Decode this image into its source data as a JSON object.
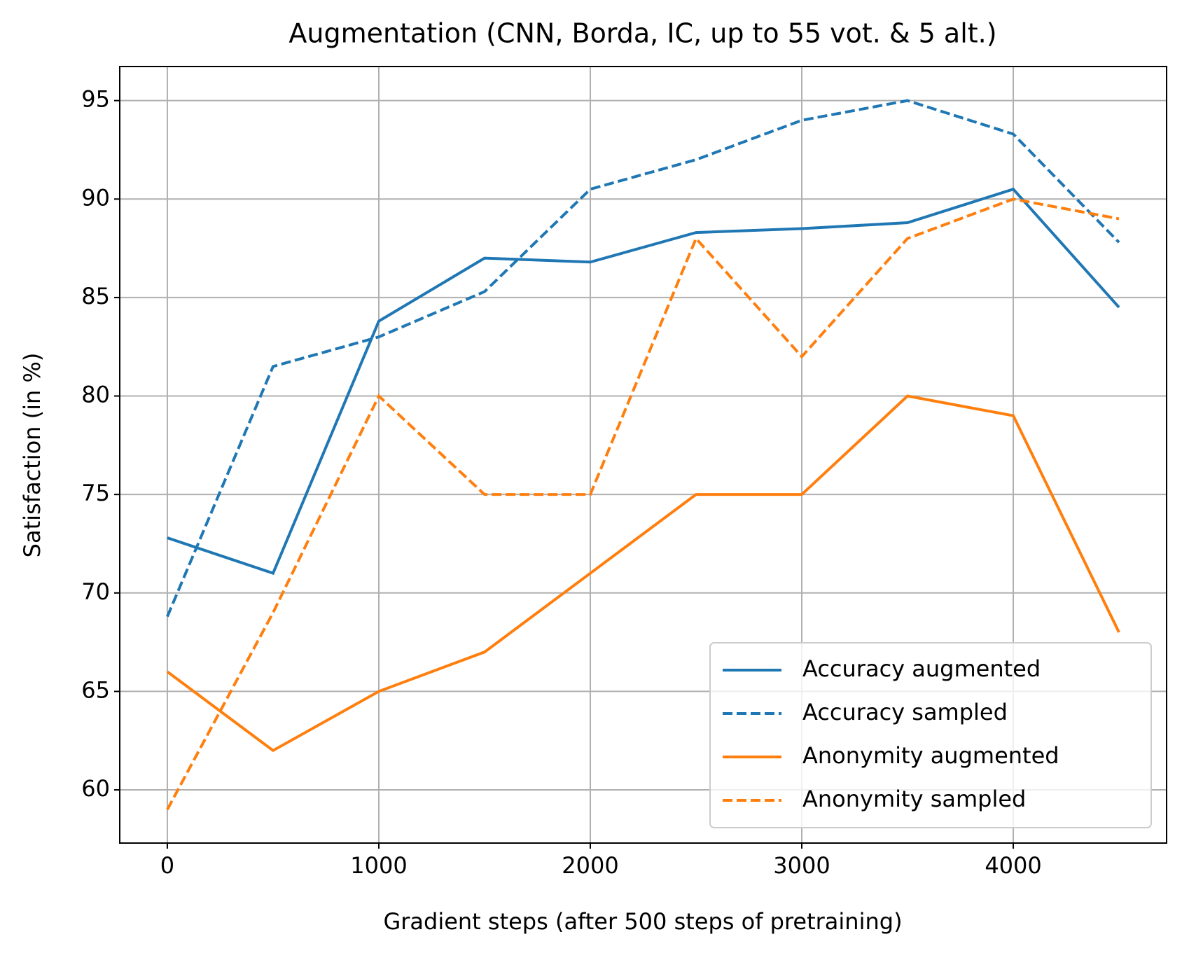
{
  "chart_data": {
    "type": "line",
    "title": "Augmentation (CNN, Borda, IC, up to 55 vot. & 5 alt.)",
    "x_label": "Gradient steps (after 500 steps of pretraining)",
    "y_label": "Satisfaction (in %)",
    "x": [
      0,
      500,
      1000,
      1500,
      2000,
      2500,
      3000,
      3500,
      4000,
      4500
    ],
    "series": [
      {
        "name": "Accuracy augmented",
        "color": "#1f77b4",
        "linestyle": "solid",
        "values": [
          72.8,
          71.0,
          83.8,
          87.0,
          86.8,
          88.3,
          88.5,
          88.8,
          90.5,
          84.5
        ]
      },
      {
        "name": "Accuracy sampled",
        "color": "#1f77b4",
        "linestyle": "dashed",
        "values": [
          68.8,
          81.5,
          83.0,
          85.3,
          90.5,
          92.0,
          94.0,
          95.0,
          93.3,
          87.8
        ]
      },
      {
        "name": "Anonymity augmented",
        "color": "#ff7f0e",
        "linestyle": "solid",
        "values": [
          66,
          62,
          65,
          67,
          71,
          75,
          75,
          80,
          79,
          68
        ]
      },
      {
        "name": "Anonymity sampled",
        "color": "#ff7f0e",
        "linestyle": "dashed",
        "values": [
          59,
          69,
          80,
          75,
          75,
          88,
          82,
          88,
          90,
          89
        ]
      }
    ],
    "xlim": [
      -225,
      4725
    ],
    "xticks": [
      0,
      1000,
      2000,
      3000,
      4000
    ],
    "ylim": [
      57.3,
      96.73
    ],
    "yticks": [
      60,
      65,
      70,
      75,
      80,
      85,
      90,
      95
    ],
    "grid": true,
    "legend": "lower right"
  }
}
